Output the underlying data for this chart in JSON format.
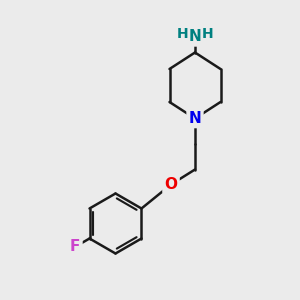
{
  "bg_color": "#ebebeb",
  "bond_color": "#1a1a1a",
  "N_color": "#0000ee",
  "O_color": "#ee0000",
  "F_color": "#cc44cc",
  "NH2_H_color": "#008080",
  "line_width": 1.8,
  "figsize": [
    3.0,
    3.0
  ],
  "dpi": 100,
  "xlim": [
    0,
    10
  ],
  "ylim": [
    0,
    10
  ]
}
